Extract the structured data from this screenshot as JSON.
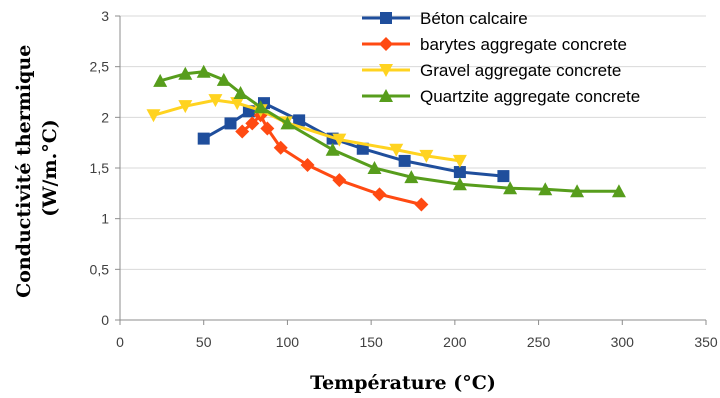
{
  "chart_data": {
    "type": "line",
    "xlabel": "Température (°C)",
    "ylabel_line1": "Conductivité thermique",
    "ylabel_line2": "(W/m.°C)",
    "xlim": [
      0,
      350
    ],
    "ylim": [
      0,
      3
    ],
    "x_ticks": [
      0,
      50,
      100,
      150,
      200,
      250,
      300,
      350
    ],
    "x_tick_labels": [
      "0",
      "50",
      "100",
      "150",
      "200",
      "250",
      "300",
      "350"
    ],
    "y_ticks": [
      0,
      0.5,
      1,
      1.5,
      2,
      2.5,
      3
    ],
    "y_tick_labels": [
      "0",
      "0,5",
      "1",
      "1,5",
      "2",
      "2,5",
      "3"
    ],
    "grid": "horizontal",
    "legend_position": "top-right",
    "series": [
      {
        "name": "Béton calcaire",
        "color": "#1f4e9c",
        "marker": "square",
        "x": [
          50,
          66,
          77,
          86,
          107,
          127,
          145,
          170,
          203,
          229
        ],
        "y": [
          1.79,
          1.94,
          2.06,
          2.14,
          1.97,
          1.79,
          1.69,
          1.57,
          1.46,
          1.42
        ]
      },
      {
        "name": "barytes aggregate concrete",
        "color": "#ff4a12",
        "marker": "diamond",
        "x": [
          73,
          79,
          84,
          88,
          96,
          112,
          131,
          155,
          180
        ],
        "y": [
          1.86,
          1.94,
          2.02,
          1.89,
          1.7,
          1.53,
          1.38,
          1.24,
          1.14
        ]
      },
      {
        "name": "Gravel aggregate concrete",
        "color": "#ffd320",
        "marker": "triangle-down",
        "x": [
          20,
          39,
          57,
          70,
          84,
          99,
          131,
          165,
          183,
          203
        ],
        "y": [
          2.02,
          2.11,
          2.17,
          2.14,
          2.07,
          1.95,
          1.78,
          1.68,
          1.62,
          1.57
        ]
      },
      {
        "name": "Quartzite aggregate concrete",
        "color": "#579d1c",
        "marker": "triangle-up",
        "x": [
          24,
          39,
          50,
          62,
          72,
          84,
          100,
          127,
          152,
          174,
          203,
          233,
          254,
          273,
          298
        ],
        "y": [
          2.36,
          2.43,
          2.45,
          2.37,
          2.24,
          2.1,
          1.94,
          1.68,
          1.5,
          1.41,
          1.34,
          1.3,
          1.29,
          1.27,
          1.27
        ]
      }
    ]
  }
}
